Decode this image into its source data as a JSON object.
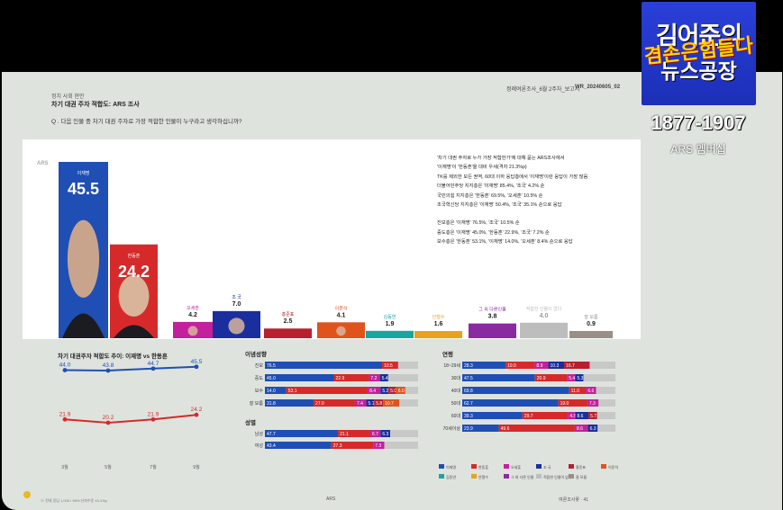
{
  "logo": {
    "line1": "김어준의",
    "line2": "겸손은힘들다",
    "line3": "뉴스공장",
    "years": "1877-1907",
    "ars": "ARS 멤버십"
  },
  "header": {
    "section": "정치 사회 현안",
    "title": "차기 대권 주자 적합도: ARS 조사",
    "right_text": "정례여론조사_6월 2주차_보고서",
    "right_code": "WR_20240605_02",
    "question": "Q . 다음 인물 중 차기 대권 주자로 가장 적합한 인물이 누구라고 생각하십니까?"
  },
  "colors": {
    "lee": "#1f4fb5",
    "han": "#d62a2a",
    "oh": "#c2219b",
    "cho": "#1a2e9e",
    "hong": "#b8202e",
    "lee2": "#e0531c",
    "kim": "#1aa5a0",
    "ahn": "#e9a21b",
    "other": "#8a2aa0",
    "none": "#bdbdbd",
    "dk": "#9a8f86"
  },
  "chart_data": [
    {
      "type": "bar",
      "label": "ARS",
      "categories": [
        "이재명",
        "한동훈",
        "오세훈",
        "조 국",
        "홍준표",
        "이준석",
        "김동연",
        "안철수",
        "그 외 다른인물",
        "적합한 인물이 없다",
        "잘 모름"
      ],
      "values": [
        45.5,
        24.2,
        4.2,
        7.0,
        2.5,
        4.1,
        1.9,
        1.6,
        3.8,
        4.0,
        0.9
      ]
    },
    {
      "type": "line",
      "title": "차기 대권주자 적합도 추이: 이재명 vs 한동훈",
      "categories": [
        "3월",
        "5월",
        "7월",
        "9월"
      ],
      "series": [
        {
          "name": "이재명",
          "values": [
            44.0,
            43.8,
            44.7,
            45.5
          ]
        },
        {
          "name": "한동훈",
          "values": [
            21.9,
            20.2,
            21.9,
            24.2
          ]
        }
      ]
    },
    {
      "type": "bar",
      "title": "이념성향",
      "categories": [
        "진보",
        "중도",
        "보수",
        "잘 모름"
      ],
      "series": [
        {
          "name": "이재명",
          "values": [
            76.5,
            45.0,
            14.0,
            31.8
          ]
        },
        {
          "name": "한동훈",
          "values": [
            0,
            22.9,
            53.1,
            27.0
          ]
        },
        {
          "name": "오세훈",
          "values": [
            0,
            0,
            8.4,
            7.4
          ]
        },
        {
          "name": "조 국",
          "values": [
            10.5,
            7.2,
            0,
            5.1
          ]
        },
        {
          "name": "기타",
          "values": [
            13.0,
            24.9,
            24.5,
            28.7
          ]
        }
      ],
      "segment_labels": [
        [
          "76.5",
          "10.5"
        ],
        [
          "45.0",
          "22.9",
          "7.2",
          "5.4"
        ],
        [
          "14.0",
          "53.1",
          "8.4",
          "5.2",
          "5.0",
          "6.0"
        ],
        [
          "31.8",
          "27.0",
          "7.4",
          "5.1",
          "5.8",
          "10.7"
        ]
      ]
    },
    {
      "type": "bar",
      "title": "성별",
      "categories": [
        "남성",
        "여성"
      ],
      "series": [
        {
          "name": "이재명",
          "values": [
            47.7,
            43.4
          ]
        },
        {
          "name": "한동훈",
          "values": [
            21.1,
            27.3
          ]
        },
        {
          "name": "조 국",
          "values": [
            6.7,
            7.3
          ]
        },
        {
          "name": "기타",
          "values": [
            24.5,
            22.0
          ]
        }
      ],
      "segment_labels": [
        [
          "47.7",
          "21.1",
          "6.7",
          "6.3"
        ],
        [
          "43.4",
          "27.3",
          "7.3"
        ]
      ]
    },
    {
      "type": "bar",
      "title": "연령",
      "categories": [
        "18~29세",
        "30대",
        "40대",
        "50대",
        "60대",
        "70세이상"
      ],
      "series": [
        {
          "name": "이재명",
          "values": [
            28.3,
            47.5,
            69.8,
            62.7,
            39.3,
            23.9
          ]
        },
        {
          "name": "한동훈",
          "values": [
            19.0,
            20.9,
            11.0,
            19.0,
            29.7,
            49.6
          ]
        },
        {
          "name": "기타",
          "values": [
            52.7,
            31.6,
            19.2,
            18.3,
            31.0,
            26.5
          ]
        }
      ],
      "segment_labels": [
        [
          "28.3",
          "19.0",
          "8.9",
          "10.3",
          "16.7"
        ],
        [
          "47.5",
          "20.9",
          "5.4",
          "5.3"
        ],
        [
          "69.8",
          "11.0",
          "6.6"
        ],
        [
          "62.7",
          "19.0",
          "7.3"
        ],
        [
          "39.3",
          "29.7",
          "4.8",
          "8.6",
          "5.7"
        ],
        [
          "23.9",
          "49.6",
          "8.6",
          "6.3"
        ]
      ]
    }
  ],
  "side_text": [
    "'차기 대권 주자로 누가 가장 적합한가'에 대해 묻는 ARS조사에서",
    "'이재명'이 '한동훈'을 대비 우세(격차 21.3%p)",
    "TK를 제외한 모든 권역, 60대 이하 응답층에서 '이재명'이란 응답이 가장 많음",
    "더불어민주당 지지층은 '이재명' 85.4%, '조국' 4.2% 순",
    "국민의힘 지지층은 '한동훈' 69.5%, '오세훈' 10.5% 순",
    "조국혁신당 지지층은 '이재명' 50.4%, '조국' 35.1% 순으로 응답",
    "",
    "진보층은 '이재명' 76.5%, '조국' 10.5% 순",
    "중도층은 '이재명' 45.0%, '한동훈' 22.9%, '조국' 7.2% 순",
    "보수층은 '한동훈' 53.1%, '이재명' 14.0%, '오세훈' 8.4% 순으로 응답"
  ],
  "legend": [
    "이재명",
    "한동훈",
    "오세훈",
    "조 국",
    "홍준표",
    "이준석",
    "김동연",
    "안철수",
    "그 외 다른 인물",
    "적합한 인물이 없다",
    "잘 모름"
  ],
  "footer": {
    "left": "※ 전체 응답 1,000 / 95% 신뢰수준 ±3.1%p",
    "center": "ARS",
    "right": "여론조사꽃 · 41"
  }
}
